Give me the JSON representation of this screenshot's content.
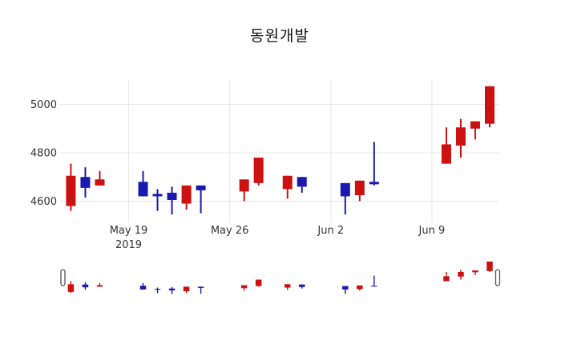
{
  "title": "동원개발",
  "colors": {
    "increasing": "#cc1111",
    "decreasing": "#1a1ab0",
    "grid": "#e8e8e8",
    "tick_label": "#333333",
    "title_color": "#111111",
    "background": "#ffffff",
    "slider_handle_fill": "#ffffff",
    "slider_handle_border": "#555555"
  },
  "chart_data": {
    "type": "candlestick",
    "title": "동원개발",
    "x": [
      "May 15",
      "May 16",
      "May 17",
      "May 20",
      "May 21",
      "May 22",
      "May 23",
      "May 24",
      "May 27",
      "May 28",
      "May 30",
      "May 31",
      "Jun 3",
      "Jun 4",
      "Jun 5",
      "Jun 10",
      "Jun 11",
      "Jun 12",
      "Jun 13"
    ],
    "day_offset_from_may19": [
      -4,
      -3,
      -2,
      1,
      2,
      3,
      4,
      5,
      8,
      9,
      11,
      12,
      15,
      16,
      17,
      22,
      23,
      24,
      25
    ],
    "open": [
      4580,
      4700,
      4665,
      4680,
      4630,
      4635,
      4590,
      4665,
      4640,
      4675,
      4650,
      4700,
      4675,
      4625,
      4680,
      4755,
      4830,
      4900,
      4920
    ],
    "high": [
      4755,
      4740,
      4725,
      4725,
      4650,
      4660,
      4665,
      4665,
      4690,
      4780,
      4705,
      4700,
      4675,
      4685,
      4845,
      4905,
      4940,
      4930,
      5075
    ],
    "low": [
      4560,
      4615,
      4665,
      4620,
      4560,
      4545,
      4565,
      4550,
      4600,
      4665,
      4610,
      4635,
      4545,
      4600,
      4665,
      4755,
      4780,
      4855,
      4905
    ],
    "close": [
      4705,
      4655,
      4690,
      4620,
      4620,
      4605,
      4665,
      4645,
      4690,
      4780,
      4705,
      4660,
      4620,
      4685,
      4670,
      4835,
      4905,
      4930,
      5075
    ],
    "yaxis": {
      "tick_values": [
        4600,
        4800,
        5000
      ],
      "tick_labels": [
        "4600",
        "4800",
        "5000"
      ],
      "range": [
        4512,
        5101
      ],
      "grid": true
    },
    "xaxis": {
      "ticks": [
        {
          "label": "May 19",
          "sublabel": "2019",
          "day_offset": 0
        },
        {
          "label": "May 26",
          "sublabel": "",
          "day_offset": 7
        },
        {
          "label": "Jun 2",
          "sublabel": "",
          "day_offset": 14
        },
        {
          "label": "Jun 9",
          "sublabel": "",
          "day_offset": 21
        }
      ],
      "range_days": [
        -4.74,
        25.67
      ],
      "grid": true
    },
    "legend": "none",
    "rangeslider": {
      "visible": true,
      "y_range": [
        4500,
        5100
      ]
    }
  }
}
